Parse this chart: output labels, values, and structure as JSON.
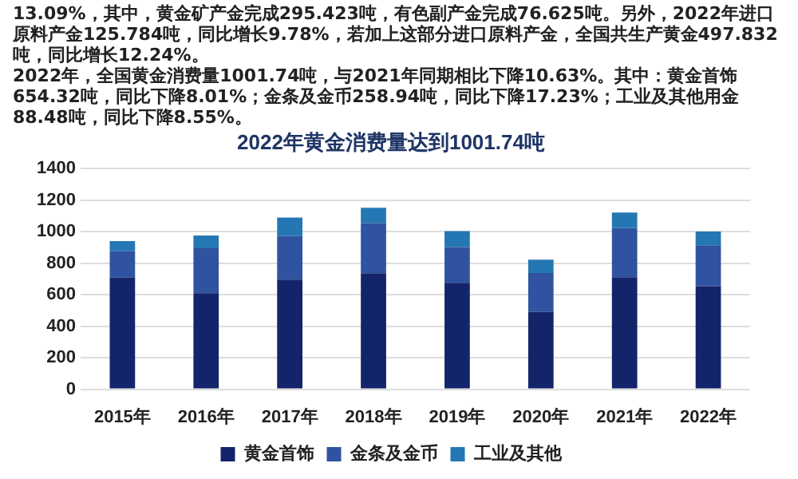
{
  "chart_data": {
    "type": "bar",
    "title": "2022年黄金消费量达到1001.74吨",
    "annotations": [
      "13.09%，其中，黄金矿产金完成295.423吨，有色副产金完成76.625吨。另外，2022年进口原料产金125.784吨，同比增长9.78%，若加上这部分进口原料产金，全国共生产黄金497.832吨，同比增长12.24%。",
      "2022年，全国黄金消费量1001.74吨，与2021年同期相比下降10.63%。其中：黄金首饰654.32吨，同比下降8.01%；金条及金币258.94吨，同比下降17.23%；工业及其他用金88.48吨，同比下降8.55%。"
    ],
    "categories": [
      "2015年",
      "2016年",
      "2017年",
      "2018年",
      "2019年",
      "2020年",
      "2021年",
      "2022年"
    ],
    "series": [
      {
        "name": "黄金首饰",
        "color": "#13246b",
        "values": [
          710,
          610,
          696,
          736,
          676,
          491,
          711,
          654
        ]
      },
      {
        "name": "金条及金币",
        "color": "#2f53a0",
        "values": [
          165,
          285,
          276,
          317,
          226,
          247,
          313,
          259
        ]
      },
      {
        "name": "工业及其他",
        "color": "#2577b3",
        "values": [
          65,
          80,
          117,
          98,
          101,
          84,
          97,
          88
        ]
      }
    ],
    "stacked": true,
    "ylim": [
      0,
      1400
    ],
    "yticks": [
      0,
      200,
      400,
      600,
      800,
      1000,
      1200,
      1400
    ],
    "grid": "y",
    "legend": "bottom"
  }
}
